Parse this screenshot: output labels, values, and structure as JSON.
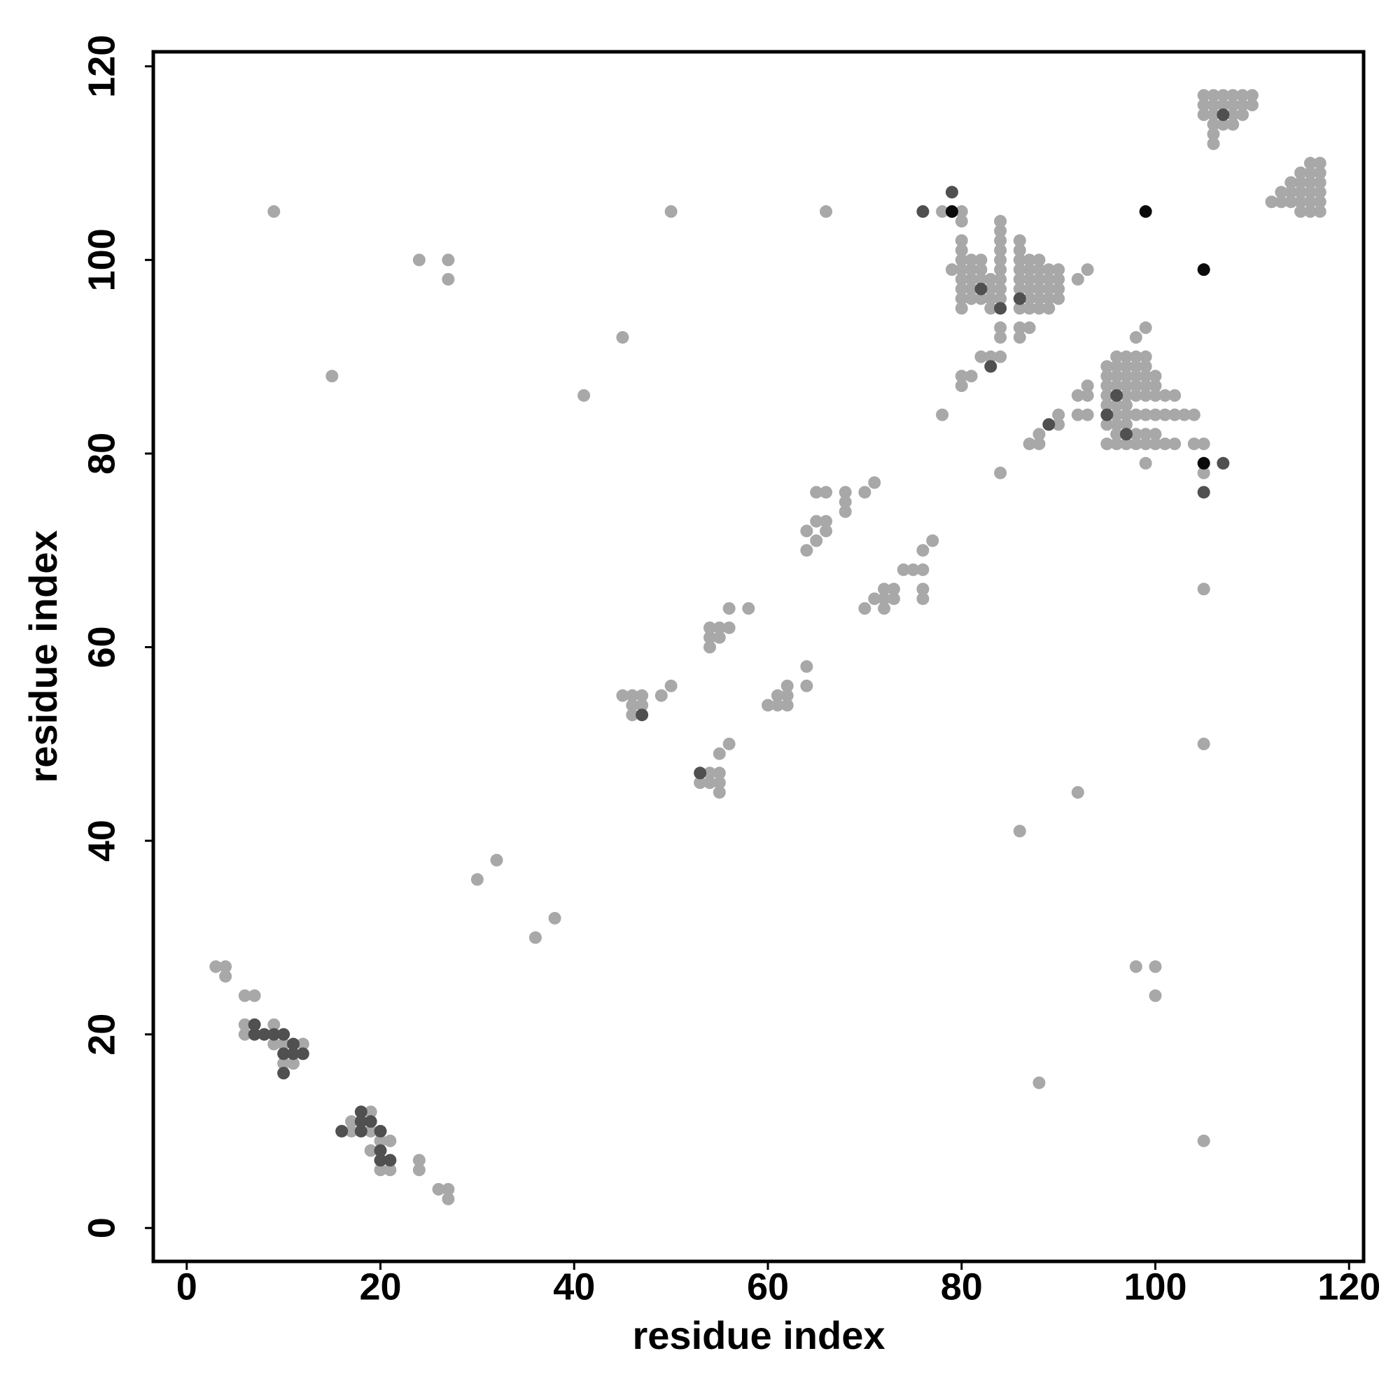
{
  "chart_data": {
    "type": "scatter",
    "x_label": "residue index",
    "y_label": "residue index",
    "xlim": [
      -3.45,
      121.5
    ],
    "ylim": [
      -3.45,
      121.5
    ],
    "xticks": [
      0,
      20,
      40,
      60,
      80,
      100,
      120
    ],
    "yticks": [
      0,
      20,
      40,
      60,
      80,
      100,
      120
    ],
    "series": [
      {
        "color": "#a8a8a8",
        "x": [
          3,
          4,
          4,
          6,
          7,
          6,
          6,
          9,
          9,
          10,
          10,
          11,
          12,
          17,
          17,
          19,
          19,
          19,
          20,
          20,
          21,
          21,
          24,
          24,
          26,
          27,
          27,
          30,
          32,
          36,
          38,
          9,
          15,
          24,
          27,
          27,
          41,
          45,
          50,
          66,
          45,
          46,
          47,
          46,
          47,
          46,
          49,
          50,
          53,
          54,
          55,
          54,
          55,
          55,
          55,
          56,
          54,
          55,
          56,
          54,
          55,
          54,
          56,
          58,
          60,
          61,
          61,
          62,
          62,
          62,
          64,
          64,
          64,
          64,
          65,
          65,
          66,
          66,
          65,
          66,
          68,
          68,
          68,
          70,
          71,
          70,
          71,
          72,
          72,
          73,
          73,
          72,
          74,
          75,
          76,
          76,
          76,
          76,
          77,
          78,
          78,
          79,
          80,
          80,
          80,
          80,
          80,
          80,
          80,
          80,
          80,
          80,
          81,
          81,
          81,
          81,
          81,
          82,
          82,
          82,
          82,
          83,
          83,
          83,
          83,
          84,
          84,
          84,
          84,
          84,
          84,
          84,
          84,
          84,
          84,
          84,
          86,
          86,
          86,
          86,
          86,
          86,
          86,
          86,
          86,
          87,
          87,
          87,
          87,
          87,
          87,
          87,
          88,
          88,
          88,
          88,
          88,
          88,
          89,
          89,
          89,
          89,
          89,
          90,
          90,
          90,
          90,
          92,
          93,
          80,
          80,
          81,
          82,
          83,
          84,
          84,
          86,
          88,
          92,
          98,
          100,
          100,
          105,
          105,
          105,
          87,
          88,
          88,
          90,
          90,
          92,
          92,
          93,
          93,
          93,
          95,
          95,
          95,
          95,
          95,
          95,
          95,
          96,
          96,
          96,
          96,
          96,
          96,
          96,
          96,
          96,
          97,
          97,
          97,
          97,
          97,
          97,
          97,
          97,
          97,
          98,
          98,
          98,
          98,
          98,
          98,
          98,
          98,
          99,
          99,
          99,
          99,
          99,
          99,
          99,
          99,
          99,
          100,
          100,
          100,
          100,
          100,
          100,
          101,
          101,
          101,
          102,
          102,
          102,
          103,
          104,
          104,
          105,
          98,
          99,
          105,
          105,
          106,
          107,
          108,
          109,
          110,
          105,
          106,
          107,
          108,
          109,
          110,
          105,
          106,
          108,
          109,
          106,
          107,
          108,
          106,
          106,
          112,
          113,
          113,
          114,
          114,
          114,
          115,
          115,
          115,
          115,
          115,
          116,
          116,
          116,
          116,
          116,
          116,
          117,
          117,
          117,
          117,
          117,
          117
        ],
        "values": [
          27,
          27,
          26,
          24,
          24,
          21,
          20,
          21,
          19,
          19,
          17,
          17,
          19,
          11,
          10,
          12,
          10,
          8,
          9,
          6,
          9,
          6,
          7,
          6,
          4,
          4,
          3,
          36,
          38,
          30,
          32,
          105,
          88,
          100,
          100,
          98,
          86,
          92,
          105,
          105,
          55,
          55,
          55,
          54,
          54,
          53,
          55,
          56,
          46,
          47,
          47,
          46,
          46,
          45,
          49,
          50,
          62,
          62,
          62,
          61,
          61,
          60,
          64,
          64,
          54,
          54,
          55,
          55,
          54,
          56,
          56,
          58,
          72,
          70,
          71,
          73,
          73,
          72,
          76,
          76,
          76,
          75,
          74,
          76,
          77,
          64,
          65,
          66,
          64,
          66,
          65,
          65,
          68,
          68,
          68,
          70,
          66,
          65,
          71,
          84,
          105,
          99,
          105,
          104,
          102,
          101,
          100,
          99,
          98,
          97,
          96,
          95,
          100,
          99,
          98,
          97,
          96,
          100,
          99,
          98,
          96,
          98,
          97,
          96,
          95,
          104,
          103,
          102,
          101,
          100,
          99,
          98,
          97,
          96,
          93,
          92,
          102,
          101,
          100,
          99,
          98,
          97,
          95,
          93,
          92,
          100,
          99,
          98,
          97,
          96,
          95,
          93,
          100,
          99,
          98,
          97,
          96,
          95,
          99,
          98,
          97,
          96,
          95,
          99,
          98,
          97,
          96,
          98,
          99,
          88,
          87,
          88,
          90,
          90,
          90,
          78,
          41,
          15,
          45,
          27,
          27,
          24,
          9,
          50,
          66,
          81,
          82,
          81,
          84,
          83,
          86,
          84,
          87,
          86,
          84,
          89,
          88,
          87,
          86,
          85,
          83,
          81,
          90,
          89,
          88,
          87,
          85,
          84,
          83,
          82,
          81,
          90,
          89,
          88,
          87,
          86,
          85,
          84,
          83,
          81,
          90,
          89,
          88,
          87,
          86,
          84,
          82,
          81,
          90,
          89,
          88,
          87,
          86,
          84,
          82,
          81,
          79,
          88,
          87,
          86,
          84,
          82,
          81,
          86,
          84,
          81,
          86,
          84,
          81,
          84,
          84,
          81,
          81,
          92,
          93,
          78,
          117,
          117,
          117,
          117,
          117,
          117,
          116,
          116,
          116,
          116,
          116,
          116,
          115,
          115,
          115,
          115,
          114,
          114,
          114,
          113,
          112,
          106,
          107,
          106,
          108,
          107,
          106,
          109,
          108,
          107,
          106,
          105,
          110,
          109,
          108,
          107,
          106,
          105,
          110,
          109,
          108,
          107,
          106,
          105
        ]
      },
      {
        "color": "#505050",
        "x": [
          7,
          7,
          8,
          9,
          10,
          10,
          10,
          11,
          11,
          12,
          16,
          18,
          18,
          18,
          19,
          20,
          20,
          20,
          21,
          47,
          53,
          76,
          79,
          82,
          84,
          86,
          83,
          89,
          95,
          96,
          97,
          105,
          107,
          107
        ],
        "values": [
          21,
          20,
          20,
          20,
          20,
          18,
          16,
          19,
          18,
          18,
          10,
          12,
          11,
          10,
          11,
          10,
          8,
          7,
          7,
          53,
          47,
          105,
          107,
          97,
          95,
          96,
          89,
          83,
          84,
          86,
          82,
          76,
          79,
          115
        ]
      },
      {
        "color": "#0a0a0a",
        "x": [
          79,
          99,
          105,
          105
        ],
        "values": [
          105,
          105,
          99,
          79
        ]
      }
    ]
  }
}
